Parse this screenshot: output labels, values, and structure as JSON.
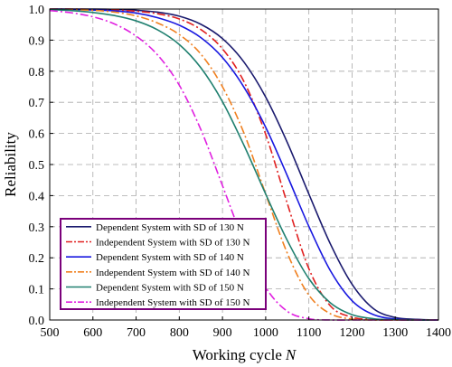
{
  "chart_data": {
    "type": "line",
    "xlabel": "Working cycle",
    "xlabel_var": "N",
    "ylabel": "Reliability",
    "xlim": [
      500,
      1400
    ],
    "ylim": [
      0,
      1.0
    ],
    "grid": true,
    "legend_position": "bottom-left",
    "x_ticks": [
      "500",
      "600",
      "700",
      "800",
      "900",
      "1000",
      "1100",
      "1200",
      "1300",
      "1400"
    ],
    "y_ticks": [
      "0.0",
      "0.1",
      "0.2",
      "0.3",
      "0.4",
      "0.5",
      "0.6",
      "0.7",
      "0.8",
      "0.9",
      "1.0"
    ],
    "x": [
      500,
      550,
      600,
      650,
      700,
      750,
      800,
      850,
      900,
      950,
      1000,
      1050,
      1100,
      1150,
      1200,
      1250,
      1300,
      1350,
      1400
    ],
    "series": [
      {
        "name": "Dependent System with SD of 130 N",
        "color": "#1a1a6e",
        "dash": "solid",
        "values": [
          1.0,
          1.0,
          1.0,
          0.999,
          0.996,
          0.99,
          0.977,
          0.951,
          0.905,
          0.829,
          0.717,
          0.571,
          0.405,
          0.244,
          0.115,
          0.036,
          0.008,
          0.002,
          0.0
        ]
      },
      {
        "name": "Independent System with SD of 130 N",
        "color": "#e02020",
        "dash": "dashdot",
        "values": [
          1.0,
          1.0,
          0.999,
          0.997,
          0.993,
          0.985,
          0.968,
          0.934,
          0.872,
          0.766,
          0.597,
          0.375,
          0.165,
          0.045,
          0.009,
          0.001,
          0.0,
          0.0,
          0.0
        ]
      },
      {
        "name": "Dependent System with SD of 140 N",
        "color": "#1818e0",
        "dash": "solid",
        "values": [
          1.0,
          0.999,
          0.997,
          0.994,
          0.987,
          0.972,
          0.948,
          0.908,
          0.844,
          0.748,
          0.62,
          0.464,
          0.301,
          0.158,
          0.062,
          0.017,
          0.003,
          0.0,
          0.0
        ]
      },
      {
        "name": "Independent System with SD of 140 N",
        "color": "#f08020",
        "dash": "dashdot",
        "values": [
          1.0,
          0.998,
          0.996,
          0.99,
          0.978,
          0.955,
          0.918,
          0.855,
          0.75,
          0.6,
          0.405,
          0.215,
          0.08,
          0.02,
          0.003,
          0.0,
          0.0,
          0.0,
          0.0
        ]
      },
      {
        "name": "Dependent System with SD of 150 N",
        "color": "#208070",
        "dash": "solid",
        "values": [
          0.998,
          0.995,
          0.989,
          0.979,
          0.962,
          0.933,
          0.886,
          0.811,
          0.702,
          0.561,
          0.405,
          0.256,
          0.133,
          0.055,
          0.017,
          0.004,
          0.001,
          0.0,
          0.0
        ]
      },
      {
        "name": "Independent System with SD of 150 N",
        "color": "#e020e0",
        "dash": "dashdot",
        "values": [
          0.995,
          0.988,
          0.975,
          0.952,
          0.913,
          0.852,
          0.755,
          0.612,
          0.432,
          0.25,
          0.105,
          0.028,
          0.004,
          0.0,
          0.0,
          0.0,
          0.0,
          0.0,
          0.0
        ]
      }
    ]
  }
}
